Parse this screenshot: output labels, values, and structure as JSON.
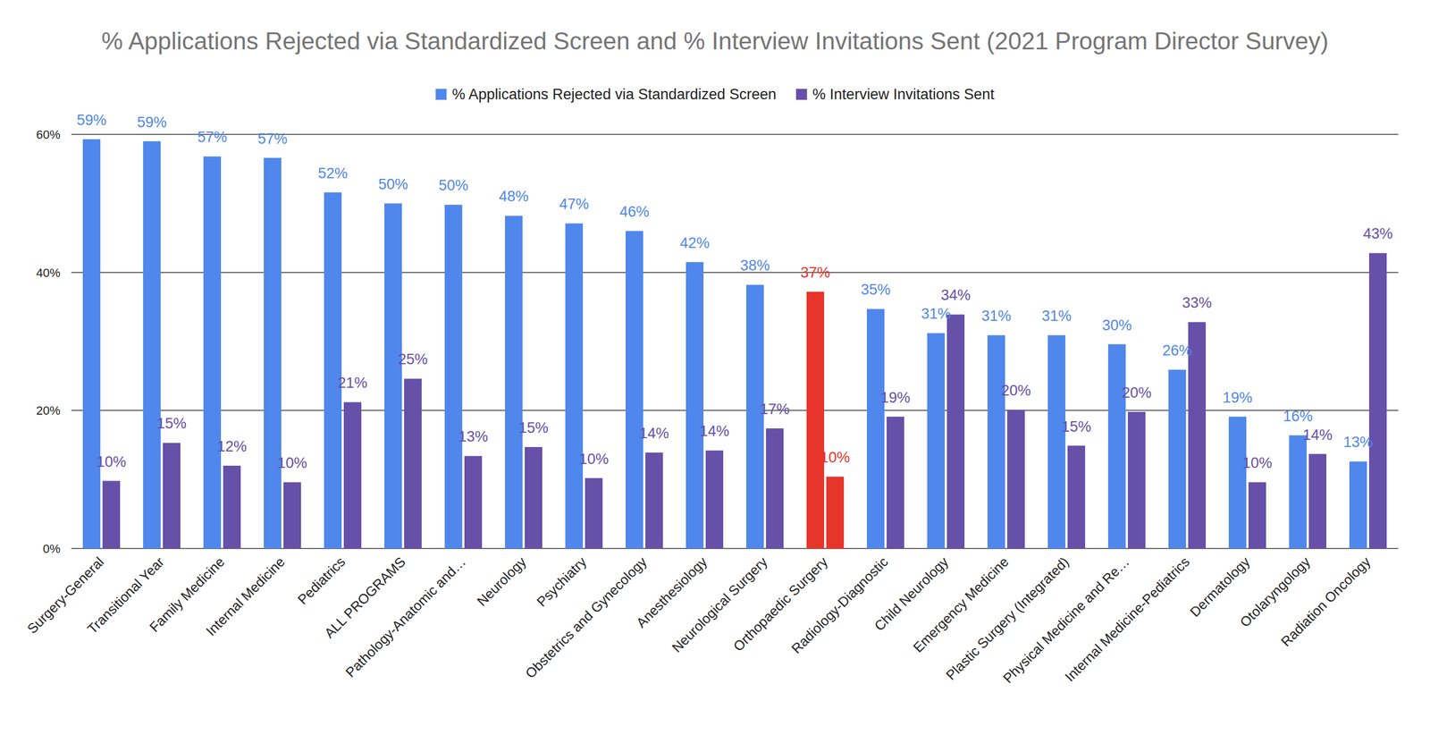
{
  "chart_data": {
    "type": "bar",
    "title": "% Applications Rejected via Standardized Screen and % Interview Invitations Sent (2021 Program Director Survey)",
    "categories": [
      "Surgery-General",
      "Transitional Year",
      "Family Medicine",
      "Internal Medicine",
      "Pediatrics",
      "ALL PROGRAMS",
      "Pathology-Anatomic and…",
      "Neurology",
      "Psychiatry",
      "Obstetrics and Gynecology",
      "Anesthesiology",
      "Neurological Surgery",
      "Orthopaedic Surgery",
      "Radiology-Diagnostic",
      "Child Neurology",
      "Emergency Medicine",
      "Plastic Surgery (Integrated)",
      "Physical Medicine and Re…",
      "Internal Medicine-Pediatrics",
      "Dermatology",
      "Otolaryngology",
      "Radiation Oncology"
    ],
    "series": [
      {
        "name": "% Applications Rejected via Standardized Screen",
        "color": "#5087ec",
        "colors": [
          "#5087ec",
          "#5087ec",
          "#5087ec",
          "#5087ec",
          "#5087ec",
          "#5087ec",
          "#5087ec",
          "#5087ec",
          "#5087ec",
          "#5087ec",
          "#5087ec",
          "#5087ec",
          "#e8352b",
          "#5087ec",
          "#5087ec",
          "#5087ec",
          "#5087ec",
          "#5087ec",
          "#5087ec",
          "#5087ec",
          "#5087ec",
          "#5087ec"
        ],
        "values": [
          59.3,
          59.0,
          56.8,
          56.6,
          51.6,
          50.0,
          49.8,
          48.2,
          47.1,
          46.0,
          41.5,
          38.2,
          37.2,
          34.7,
          31.2,
          30.9,
          30.9,
          29.6,
          25.9,
          19.1,
          16.4,
          12.6
        ],
        "value_labels": [
          "59%",
          "59%",
          "57%",
          "57%",
          "52%",
          "50%",
          "50%",
          "48%",
          "47%",
          "46%",
          "42%",
          "38%",
          "37%",
          "35%",
          "31%",
          "31%",
          "31%",
          "30%",
          "26%",
          "19%",
          "16%",
          "13%"
        ]
      },
      {
        "name": "% Interview Invitations Sent",
        "color": "#6650a8",
        "colors": [
          "#6650a8",
          "#6650a8",
          "#6650a8",
          "#6650a8",
          "#6650a8",
          "#6650a8",
          "#6650a8",
          "#6650a8",
          "#6650a8",
          "#6650a8",
          "#6650a8",
          "#6650a8",
          "#e8352b",
          "#6650a8",
          "#6650a8",
          "#6650a8",
          "#6650a8",
          "#6650a8",
          "#6650a8",
          "#6650a8",
          "#6650a8",
          "#6650a8"
        ],
        "values": [
          9.8,
          15.3,
          12.0,
          9.6,
          21.2,
          24.6,
          13.4,
          14.7,
          10.2,
          13.9,
          14.2,
          17.4,
          10.4,
          19.1,
          33.9,
          20.1,
          14.9,
          19.8,
          32.8,
          9.6,
          13.7,
          42.8
        ],
        "value_labels": [
          "10%",
          "15%",
          "12%",
          "10%",
          "21%",
          "25%",
          "13%",
          "15%",
          "10%",
          "14%",
          "14%",
          "17%",
          "10%",
          "19%",
          "34%",
          "20%",
          "15%",
          "20%",
          "33%",
          "10%",
          "14%",
          "43%"
        ]
      }
    ],
    "ylim": [
      0,
      60
    ],
    "yticks": [
      {
        "value": 0,
        "label": "0%"
      },
      {
        "value": 20,
        "label": "20%"
      },
      {
        "value": 40,
        "label": "40%"
      },
      {
        "value": 60,
        "label": "60%"
      }
    ],
    "grid": true,
    "legend": "top",
    "data_labels": true
  }
}
